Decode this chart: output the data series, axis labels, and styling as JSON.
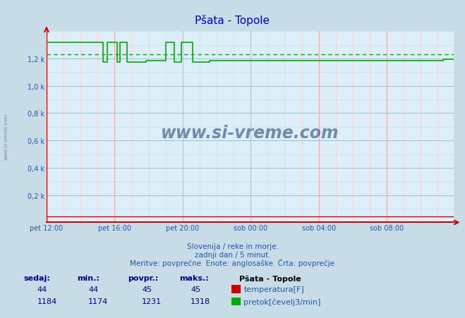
{
  "title": "Pšata - Topole",
  "title_color": "#0000cc",
  "bg_color": "#c8dce8",
  "plot_bg_color": "#dceef8",
  "grid_color_h": "#88bbcc",
  "grid_color_v": "#ffaaaa",
  "minor_grid_color_v": "#ffcccc",
  "minor_grid_color_h": "#bbddee",
  "xlabel_color": "#2255aa",
  "ylabel_color": "#2255aa",
  "x_tick_labels": [
    "pet 12:00",
    "pet 16:00",
    "pet 20:00",
    "sob 00:00",
    "sob 04:00",
    "sob 08:00"
  ],
  "x_tick_positions": [
    0,
    48,
    96,
    144,
    192,
    240
  ],
  "y_tick_labels": [
    "0,2 k",
    "0,4 k",
    "0,6 k",
    "0,8 k",
    "1,0 k",
    "1,2 k"
  ],
  "y_tick_values": [
    200,
    400,
    600,
    800,
    1000,
    1200
  ],
  "ymin": 0,
  "ymax": 1400,
  "n_points": 288,
  "temp_value": 44,
  "temp_min": 44,
  "temp_povpr": 45,
  "temp_maks": 45,
  "flow_sedaj": 1184,
  "flow_min": 1174,
  "flow_povpr": 1231,
  "flow_maks": 1318,
  "flow_color": "#00aa00",
  "temp_color": "#cc0000",
  "avg_line_color": "#00aa00",
  "footer_line1": "Slovenija / reke in morje.",
  "footer_line2": "zadnji dan / 5 minut.",
  "footer_line3": "Meritve: povprečne  Enote: anglosaške  Črta: povprečje",
  "footer_color": "#2255aa",
  "legend_title": "Pšata - Topole",
  "legend_title_color": "#000000",
  "legend_temp_label": "temperatura[F]",
  "legend_flow_label": "pretok[čevelj3/min]",
  "legend_label_color": "#2255aa",
  "table_headers": [
    "sedaj:",
    "min.:",
    "povpr.:",
    "maks.:"
  ],
  "table_header_color": "#000080",
  "axis_color": "#cc0000",
  "watermark": "www.si-vreme.com",
  "watermark_color": "#1a3a6a"
}
